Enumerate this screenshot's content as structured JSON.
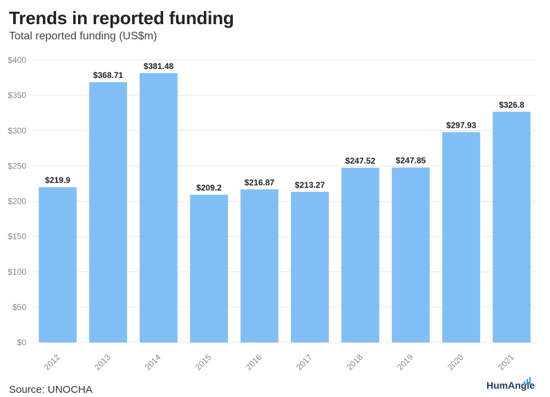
{
  "header": {
    "title": "Trends in reported funding",
    "subtitle": "Total reported funding (US$m)"
  },
  "footer": {
    "source": "Source: UNOCHA",
    "logo_text": "HumAngle"
  },
  "colors": {
    "bar": "#80bff5",
    "grid": "#e6e6e6",
    "axis_text": "#888888",
    "label_text": "#222222"
  },
  "chart_data": {
    "type": "bar",
    "title": "Trends in reported funding",
    "subtitle": "Total reported funding (US$m)",
    "xlabel": "",
    "ylabel": "",
    "categories": [
      "2012",
      "2013",
      "2014",
      "2015",
      "2016",
      "2017",
      "2018",
      "2019",
      "2020",
      "2021"
    ],
    "values": [
      219.9,
      368.71,
      381.48,
      209.2,
      216.87,
      213.27,
      247.52,
      247.85,
      297.93,
      326.8
    ],
    "value_labels": [
      "$219.9",
      "$368.71",
      "$381.48",
      "$209.2",
      "$216.87",
      "$213.27",
      "$247.52",
      "$247.85",
      "$297.93",
      "$326.8"
    ],
    "ylim": [
      0,
      400
    ],
    "yticks": [
      0,
      50,
      100,
      150,
      200,
      250,
      300,
      350,
      400
    ],
    "ytick_labels": [
      "$0",
      "$50",
      "$100",
      "$150",
      "$200",
      "$250",
      "$300",
      "$350",
      "$400"
    ],
    "grid": true,
    "legend": "none"
  }
}
